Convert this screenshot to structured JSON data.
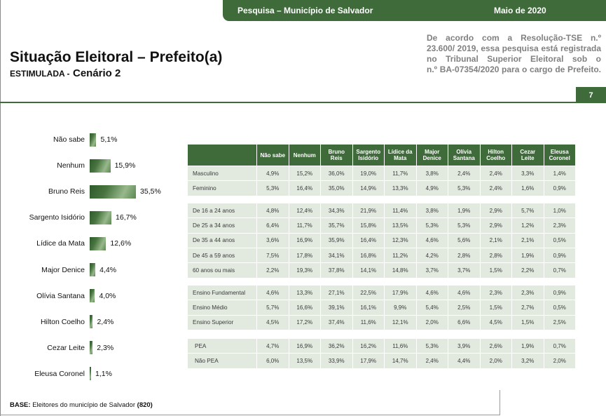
{
  "header": {
    "survey_label": "Pesquisa – Município de Salvador",
    "date_label": "Maio de 2020"
  },
  "title": "Situação Eleitoral – Prefeito(a)",
  "subtitle": {
    "type_label": "ESTIMULADA -",
    "scenario_label": "Cenário 2"
  },
  "disclaimer_lines": [
    "De acordo com a Resolução-TSE n.º",
    "23.600/ 2019, essa pesquisa está registrada",
    "no Tribunal Superior Eleitoral sob o",
    "n.º BA-07354/2020 para o cargo de Prefeito."
  ],
  "page_number": "7",
  "base": {
    "label": "BASE:",
    "text": "Eleitores do município de Salvador",
    "count": "(820)"
  },
  "colors": {
    "brand_green": "#3f6b3b",
    "table_cell": "#e2eae0",
    "note_gray": "#808080"
  },
  "chart_data": [
    {
      "type": "bar",
      "orientation": "horizontal",
      "unit": "%",
      "categories": [
        "Não sabe",
        "Nenhum",
        "Bruno Reis",
        "Sargento Isidório",
        "Lídice da Mata",
        "Major Denice",
        "Olívia Santana",
        "Hilton Coelho",
        "Cezar Leite",
        "Eleusa Coronel"
      ],
      "values": [
        5.1,
        15.9,
        35.5,
        16.7,
        12.6,
        4.4,
        4.0,
        2.4,
        2.3,
        1.1
      ]
    },
    {
      "type": "table",
      "unit": "%",
      "columns": [
        "Não sabe",
        "Nenhum",
        "Bruno Reis",
        "Sargento Isidório",
        "Lídice da Mata",
        "Major Denice",
        "Olívia Santana",
        "Hilton Coelho",
        "Cezar Leite",
        "Eleusa Coronel"
      ],
      "row_groups": [
        [
          {
            "label": "Masculino",
            "values": [
              4.9,
              15.2,
              36.0,
              19.0,
              11.7,
              3.8,
              2.4,
              2.4,
              3.3,
              1.4
            ]
          },
          {
            "label": "Feminino",
            "values": [
              5.3,
              16.4,
              35.0,
              14.9,
              13.3,
              4.9,
              5.3,
              2.4,
              1.6,
              0.9
            ]
          }
        ],
        [
          {
            "label": "De 16 a 24 anos",
            "values": [
              4.8,
              12.4,
              34.3,
              21.9,
              11.4,
              3.8,
              1.9,
              2.9,
              5.7,
              1.0
            ]
          },
          {
            "label": "De 25 a 34 anos",
            "values": [
              6.4,
              11.7,
              35.7,
              15.8,
              13.5,
              5.3,
              5.3,
              2.9,
              1.2,
              2.3
            ]
          },
          {
            "label": "De 35 a 44 anos",
            "values": [
              3.6,
              16.9,
              35.9,
              16.4,
              12.3,
              4.6,
              5.6,
              2.1,
              2.1,
              0.5
            ]
          },
          {
            "label": "De 45 a 59 anos",
            "values": [
              7.5,
              17.8,
              34.1,
              16.8,
              11.2,
              4.2,
              2.8,
              2.8,
              1.9,
              0.9
            ]
          },
          {
            "label": "60 anos ou mais",
            "values": [
              2.2,
              19.3,
              37.8,
              14.1,
              14.8,
              3.7,
              3.7,
              1.5,
              2.2,
              0.7
            ]
          }
        ],
        [
          {
            "label": "Ensino Fundamental",
            "values": [
              4.6,
              13.3,
              27.1,
              22.5,
              17.9,
              4.6,
              4.6,
              2.3,
              2.3,
              0.9
            ]
          },
          {
            "label": "Ensino Médio",
            "values": [
              5.7,
              16.6,
              39.1,
              16.1,
              9.9,
              5.4,
              2.5,
              1.5,
              2.7,
              0.5
            ]
          },
          {
            "label": "Ensino Superior",
            "values": [
              4.5,
              17.2,
              37.4,
              11.6,
              12.1,
              2.0,
              6.6,
              4.5,
              1.5,
              2.5
            ]
          }
        ],
        [
          {
            "label": "PEA",
            "values": [
              4.7,
              16.9,
              36.2,
              16.2,
              11.6,
              5.3,
              3.9,
              2.6,
              1.9,
              0.7
            ]
          },
          {
            "label": "Não PEA",
            "values": [
              6.0,
              13.5,
              33.9,
              17.9,
              14.7,
              2.4,
              4.4,
              2.0,
              3.2,
              2.0
            ]
          }
        ]
      ]
    }
  ]
}
